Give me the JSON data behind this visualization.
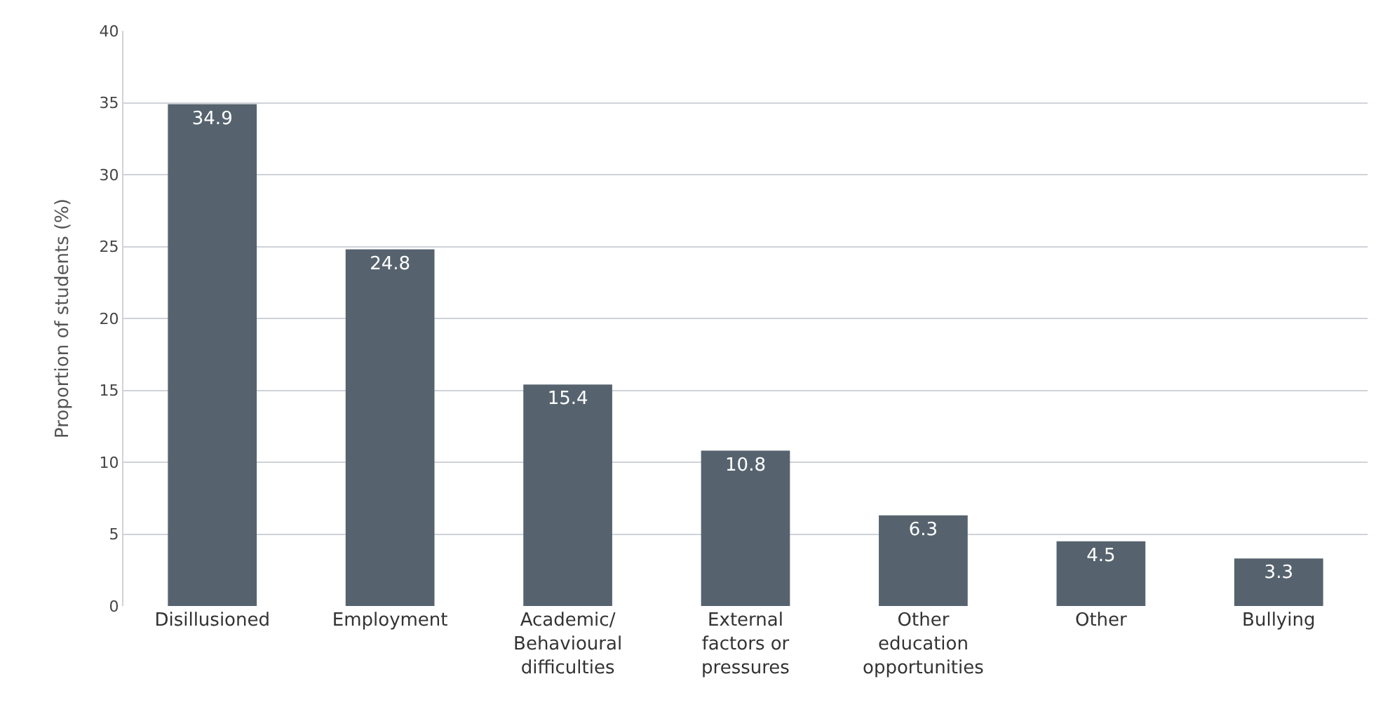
{
  "chart_data": {
    "type": "bar",
    "ylabel": "Proportion of students (%)",
    "categories": [
      "Disillusioned",
      "Employment",
      "Academic/\nBehavioural\ndifficulties",
      "External\nfactors or\npressures",
      "Other\neducation\nopportunities",
      "Other",
      "Bullying"
    ],
    "values": [
      34.9,
      24.8,
      15.4,
      10.8,
      6.3,
      4.5,
      3.3
    ],
    "color": "#56636f",
    "data_labels": true,
    "ylim": [
      0,
      40
    ],
    "yticks": [
      0,
      5,
      10,
      15,
      20,
      25,
      30,
      35,
      40
    ],
    "grid": "y"
  }
}
